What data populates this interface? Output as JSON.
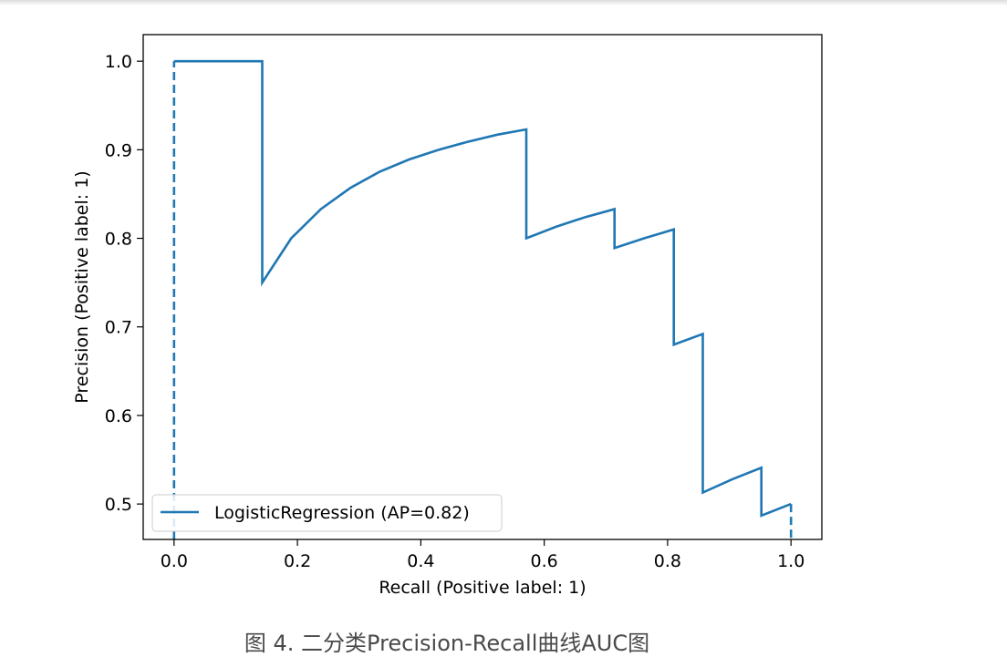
{
  "chart_data": {
    "type": "line",
    "step": "post",
    "xlabel": "Recall (Positive label: 1)",
    "ylabel": "Precision (Positive label: 1)",
    "xlim": [
      -0.05,
      1.05
    ],
    "ylim": [
      0.46,
      1.03
    ],
    "xticks": [
      0.0,
      0.2,
      0.4,
      0.6,
      0.8,
      1.0
    ],
    "xtick_labels": [
      "0.0",
      "0.2",
      "0.4",
      "0.6",
      "0.8",
      "1.0"
    ],
    "yticks": [
      0.5,
      0.6,
      0.7,
      0.8,
      0.9,
      1.0
    ],
    "ytick_labels": [
      "0.5",
      "0.6",
      "0.7",
      "0.8",
      "0.9",
      "1.0"
    ],
    "grid": false,
    "legend_position": "lower-left",
    "series": [
      {
        "name": "LogisticRegression (AP=0.82)",
        "color": "#1f77b4",
        "x": [
          0.0,
          0.0,
          0.143,
          0.143,
          0.19,
          0.238,
          0.286,
          0.333,
          0.381,
          0.429,
          0.476,
          0.524,
          0.571,
          0.571,
          0.619,
          0.667,
          0.714,
          0.714,
          0.762,
          0.81,
          0.81,
          0.857,
          0.857,
          0.905,
          0.952,
          0.952,
          1.0
        ],
        "y": [
          0.46,
          1.0,
          1.0,
          0.75,
          0.8,
          0.833,
          0.857,
          0.875,
          0.889,
          0.9,
          0.909,
          0.917,
          0.923,
          0.8,
          0.813,
          0.824,
          0.833,
          0.789,
          0.8,
          0.81,
          0.68,
          0.692,
          0.513,
          0.528,
          0.541,
          0.487,
          0.5
        ]
      }
    ],
    "dashed_segments": [
      {
        "x": [
          0.0,
          0.0
        ],
        "y": [
          0.46,
          1.0
        ]
      },
      {
        "x": [
          1.0,
          1.0
        ],
        "y": [
          0.5,
          0.46
        ]
      }
    ]
  },
  "caption": "图 4. 二分类Precision-Recall曲线AUC图"
}
